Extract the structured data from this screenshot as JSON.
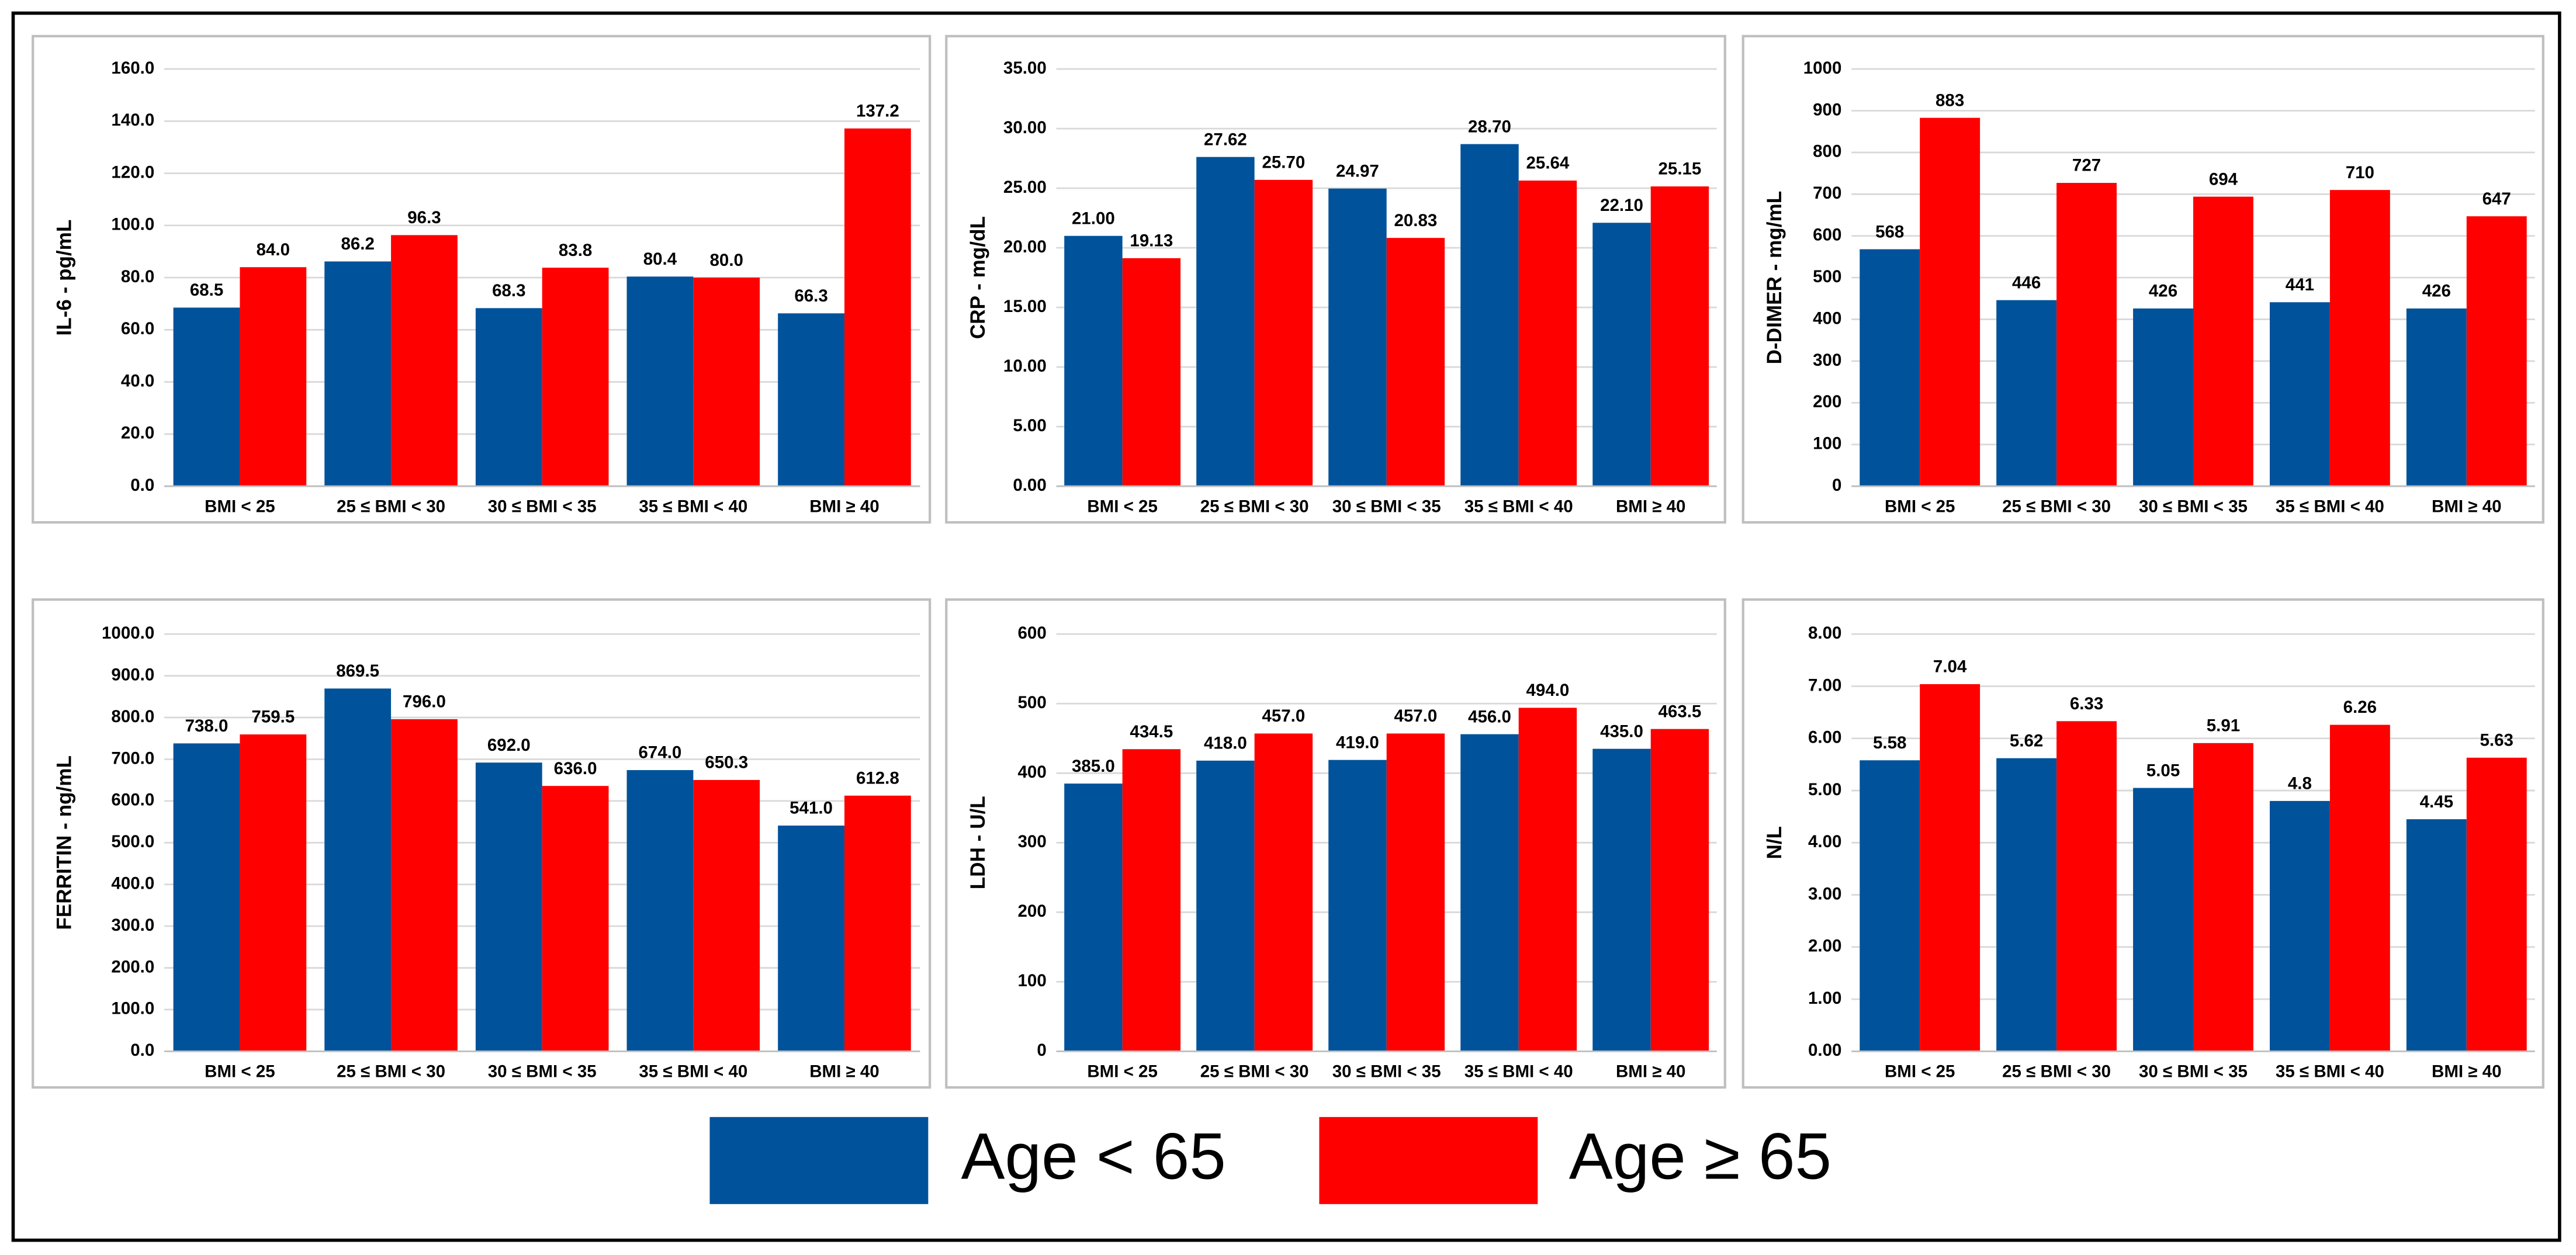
{
  "chart_data": [
    {
      "type": "bar",
      "y_label": "IL-6 - pg/mL",
      "categories": [
        "BMI < 25",
        "25 ≤ BMI < 30",
        "30 ≤ BMI < 35",
        "35 ≤ BMI < 40",
        "BMI ≥ 40"
      ],
      "series": [
        {
          "color": "#00529b",
          "values": [
            68.5,
            86.2,
            68.3,
            80.4,
            66.3
          ]
        },
        {
          "color": "#ff0000",
          "values": [
            84.0,
            96.3,
            83.8,
            80.0,
            137.2
          ],
          "value_labels": [
            "84.0",
            "96.3",
            "83.8",
            "80.0",
            "137.2"
          ]
        }
      ],
      "ylim": [
        0,
        160
      ],
      "yticks": [
        {
          "value": 0,
          "label": "0.0"
        },
        {
          "value": 20,
          "label": "20.0"
        },
        {
          "value": 40,
          "label": "40.0"
        },
        {
          "value": 60,
          "label": "60.0"
        },
        {
          "value": 80,
          "label": "80.0"
        },
        {
          "value": 100,
          "label": "100.0"
        },
        {
          "value": 120,
          "label": "120.0"
        },
        {
          "value": 140,
          "label": "140.0"
        },
        {
          "value": 160,
          "label": "160.0"
        }
      ],
      "grid": true
    },
    {
      "type": "bar",
      "y_label": "CRP - mg/dL",
      "categories": [
        "BMI < 25",
        "25 ≤ BMI < 30",
        "30 ≤ BMI < 35",
        "35 ≤ BMI < 40",
        "BMI ≥ 40"
      ],
      "series": [
        {
          "color": "#00529b",
          "values": [
            21.0,
            27.62,
            24.97,
            28.7,
            22.1
          ],
          "value_labels": [
            "21.00",
            "27.62",
            "24.97",
            "28.70",
            "22.10"
          ]
        },
        {
          "color": "#ff0000",
          "values": [
            19.13,
            25.7,
            20.83,
            25.64,
            25.15
          ],
          "value_labels": [
            "19.13",
            "25.70",
            "20.83",
            "25.64",
            "25.15"
          ]
        }
      ],
      "ylim": [
        0,
        35
      ],
      "yticks": [
        {
          "value": 0,
          "label": "0.00"
        },
        {
          "value": 5,
          "label": "5.00"
        },
        {
          "value": 10,
          "label": "10.00"
        },
        {
          "value": 15,
          "label": "15.00"
        },
        {
          "value": 20,
          "label": "20.00"
        },
        {
          "value": 25,
          "label": "25.00"
        },
        {
          "value": 30,
          "label": "30.00"
        },
        {
          "value": 35,
          "label": "35.00"
        }
      ],
      "grid": true
    },
    {
      "type": "bar",
      "y_label": "D-DIMER - mg/mL",
      "categories": [
        "BMI < 25",
        "25 ≤ BMI < 30",
        "30 ≤ BMI < 35",
        "35 ≤ BMI < 40",
        "BMI ≥ 40"
      ],
      "series": [
        {
          "color": "#00529b",
          "values": [
            568,
            446,
            426,
            441,
            426
          ]
        },
        {
          "color": "#ff0000",
          "values": [
            883,
            727,
            694,
            710,
            647
          ]
        }
      ],
      "ylim": [
        0,
        1000
      ],
      "yticks": [
        0,
        100,
        200,
        300,
        400,
        500,
        600,
        700,
        800,
        900,
        1000
      ],
      "grid": true
    },
    {
      "type": "bar",
      "y_label": "FERRITIN - ng/mL",
      "categories": [
        "BMI < 25",
        "25 ≤ BMI < 30",
        "30 ≤ BMI < 35",
        "35 ≤ BMI < 40",
        "BMI ≥ 40"
      ],
      "series": [
        {
          "color": "#00529b",
          "values": [
            738.0,
            869.5,
            692.0,
            674.0,
            541.0
          ],
          "value_labels": [
            "738.0",
            "869.5",
            "692.0",
            "674.0",
            "541.0"
          ]
        },
        {
          "color": "#ff0000",
          "values": [
            759.5,
            796.0,
            636.0,
            650.3,
            612.8
          ],
          "value_labels": [
            "759.5",
            "796.0",
            "636.0",
            "650.3",
            "612.8"
          ]
        }
      ],
      "ylim": [
        0,
        1000
      ],
      "yticks": [
        {
          "value": 0,
          "label": "0.0"
        },
        {
          "value": 100,
          "label": "100.0"
        },
        {
          "value": 200,
          "label": "200.0"
        },
        {
          "value": 300,
          "label": "300.0"
        },
        {
          "value": 400,
          "label": "400.0"
        },
        {
          "value": 500,
          "label": "500.0"
        },
        {
          "value": 600,
          "label": "600.0"
        },
        {
          "value": 700,
          "label": "700.0"
        },
        {
          "value": 800,
          "label": "800.0"
        },
        {
          "value": 900,
          "label": "900.0"
        },
        {
          "value": 1000,
          "label": "1000.0"
        }
      ],
      "grid": true
    },
    {
      "type": "bar",
      "y_label": "LDH - U/L",
      "categories": [
        "BMI < 25",
        "25 ≤ BMI < 30",
        "30 ≤ BMI < 35",
        "35 ≤ BMI < 40",
        "BMI ≥ 40"
      ],
      "series": [
        {
          "color": "#00529b",
          "values": [
            385.0,
            418.0,
            419.0,
            456.0,
            435.0
          ],
          "value_labels": [
            "385.0",
            "418.0",
            "419.0",
            "456.0",
            "435.0"
          ]
        },
        {
          "color": "#ff0000",
          "values": [
            434.5,
            457.0,
            457.0,
            494.0,
            463.5
          ],
          "value_labels": [
            "434.5",
            "457.0",
            "457.0",
            "494.0",
            "463.5"
          ]
        }
      ],
      "ylim": [
        0,
        600
      ],
      "yticks": [
        0,
        100,
        200,
        300,
        400,
        500,
        600
      ],
      "grid": true
    },
    {
      "type": "bar",
      "y_label": "N/L",
      "categories": [
        "BMI < 25",
        "25 ≤ BMI < 30",
        "30 ≤ BMI < 35",
        "35 ≤ BMI < 40",
        "BMI ≥ 40"
      ],
      "series": [
        {
          "color": "#00529b",
          "values": [
            5.58,
            5.62,
            5.05,
            4.8,
            4.45
          ]
        },
        {
          "color": "#ff0000",
          "values": [
            7.04,
            6.33,
            5.91,
            6.26,
            5.63
          ]
        }
      ],
      "ylim": [
        0,
        8
      ],
      "yticks": [
        {
          "value": 0,
          "label": "0.00"
        },
        {
          "value": 1,
          "label": "1.00"
        },
        {
          "value": 2,
          "label": "2.00"
        },
        {
          "value": 3,
          "label": "3.00"
        },
        {
          "value": 4,
          "label": "4.00"
        },
        {
          "value": 5,
          "label": "5.00"
        },
        {
          "value": 6,
          "label": "6.00"
        },
        {
          "value": 7,
          "label": "7.00"
        },
        {
          "value": 8,
          "label": "8.00"
        }
      ],
      "grid": true
    }
  ],
  "legend": [
    {
      "name": "Age < 65",
      "color": "#00529b"
    },
    {
      "name": "Age ≥ 65",
      "color": "#ff0000"
    }
  ]
}
